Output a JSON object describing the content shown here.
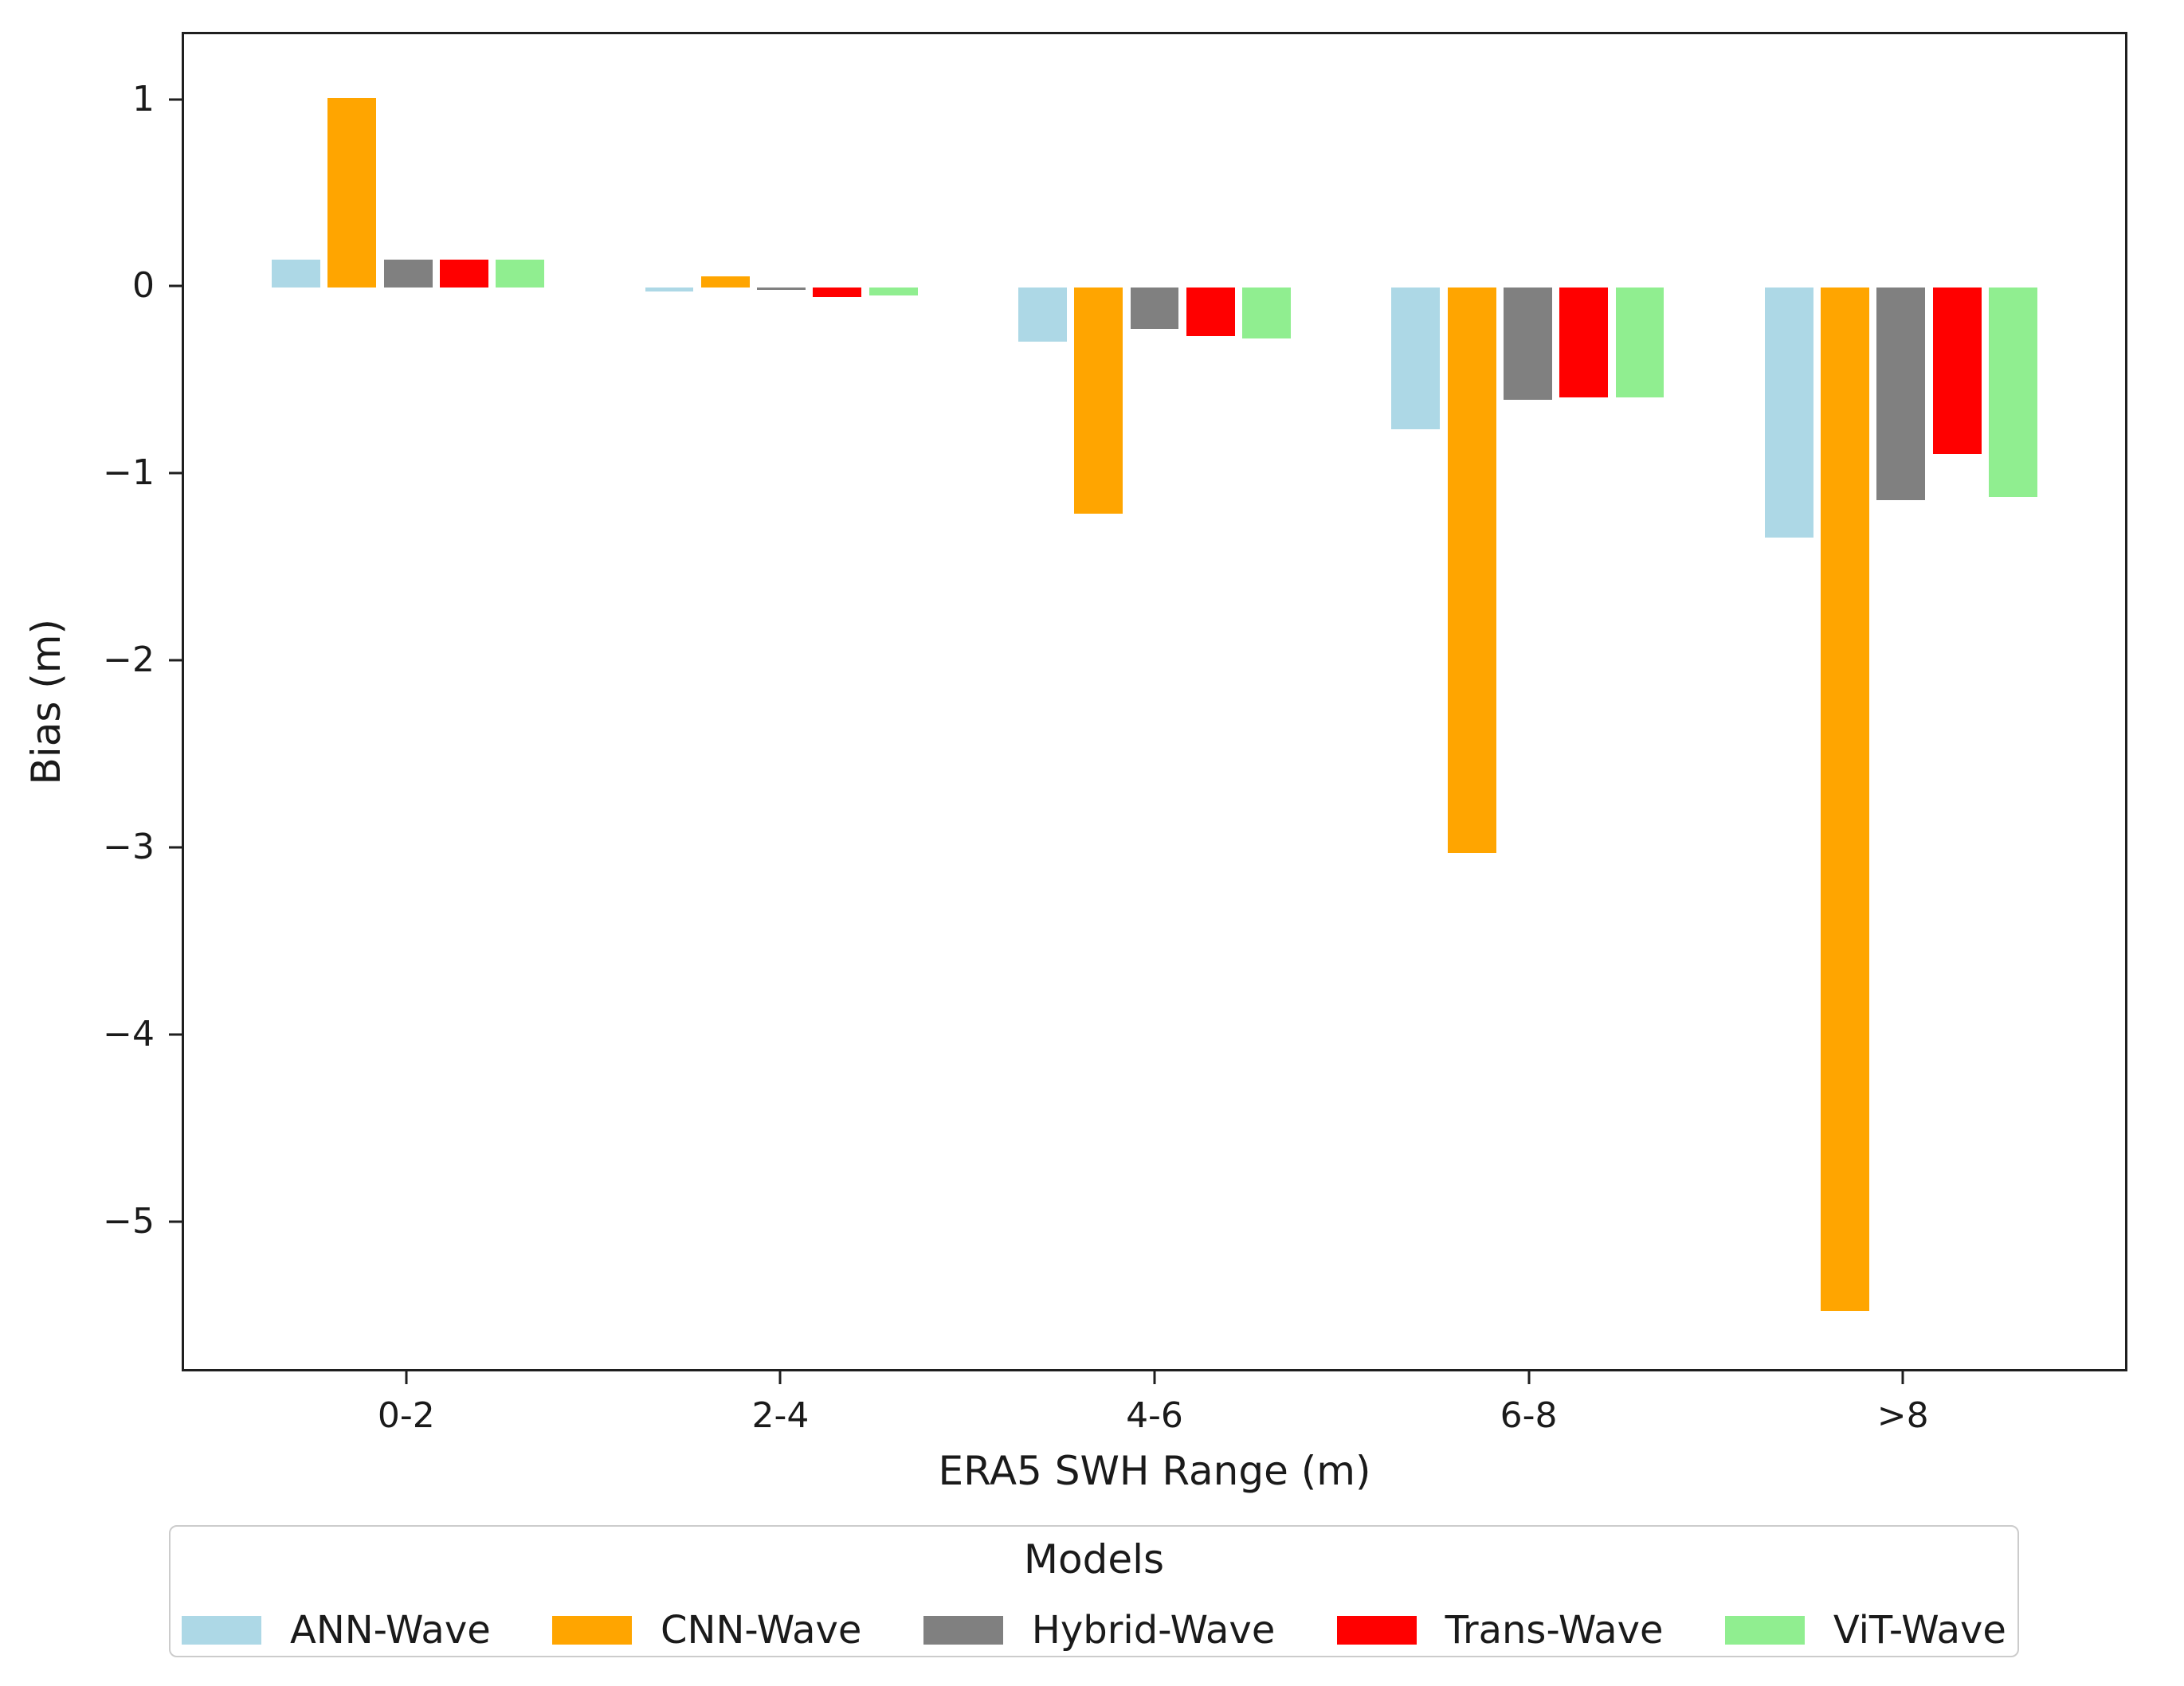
{
  "chart_data": {
    "type": "bar",
    "title": "",
    "xlabel": "ERA5 SWH Range (m)",
    "ylabel": "Bias (m)",
    "categories": [
      "0-2",
      "2-4",
      "4-6",
      "6-8",
      ">8"
    ],
    "series": [
      {
        "name": "ANN-Wave",
        "color": "#ADD8E6",
        "values": [
          0.15,
          -0.02,
          -0.29,
          -0.76,
          -1.34
        ]
      },
      {
        "name": "CNN-Wave",
        "color": "#FFA500",
        "values": [
          1.02,
          0.06,
          -1.21,
          -3.03,
          -5.49
        ]
      },
      {
        "name": "Hybrid-Wave",
        "color": "#808080",
        "values": [
          0.15,
          -0.01,
          -0.22,
          -0.6,
          -1.14
        ]
      },
      {
        "name": "Trans-Wave",
        "color": "#FF0000",
        "values": [
          0.15,
          -0.05,
          -0.26,
          -0.59,
          -0.89
        ]
      },
      {
        "name": "ViT-Wave",
        "color": "#90EE90",
        "values": [
          0.15,
          -0.04,
          -0.27,
          -0.59,
          -1.12
        ]
      }
    ],
    "yticks": [
      {
        "label": "1",
        "value": 1
      },
      {
        "label": "0",
        "value": 0
      },
      {
        "label": "−1",
        "value": -1
      },
      {
        "label": "−2",
        "value": -2
      },
      {
        "label": "−3",
        "value": -3
      },
      {
        "label": "−4",
        "value": -4
      },
      {
        "label": "−5",
        "value": -5
      }
    ],
    "ylim": [
      -5.8,
      1.36
    ],
    "grid": false,
    "legend": {
      "title": "Models",
      "position": "bottom"
    },
    "layout": {
      "x_centers_pct": [
        11.54,
        30.77,
        50.0,
        69.23,
        88.46
      ],
      "bar_width_pct": 2.5,
      "bar_step_pct": 2.885
    }
  }
}
